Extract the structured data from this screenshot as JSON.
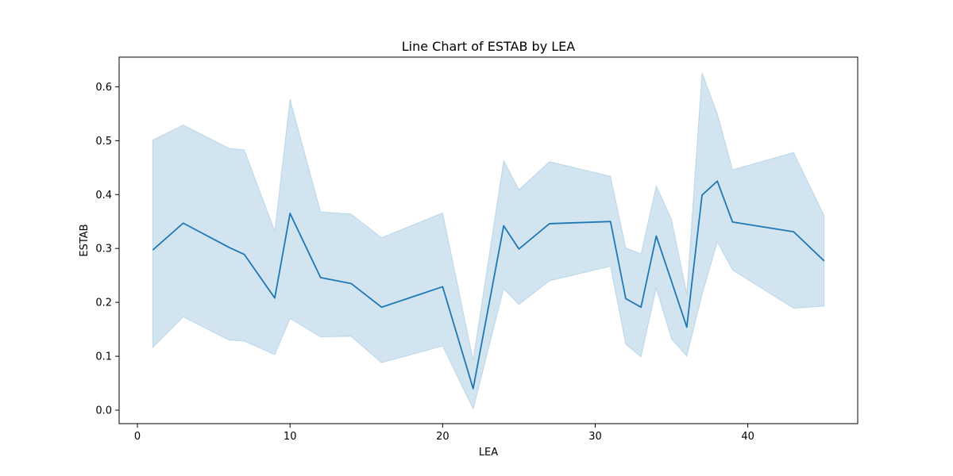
{
  "chart_data": {
    "type": "line",
    "title": "Line Chart of ESTAB by LEA",
    "xlabel": "LEA",
    "ylabel": "ESTAB",
    "xlim": [
      -1.2,
      47.2
    ],
    "ylim": [
      -0.025,
      0.655
    ],
    "xticks": [
      0,
      10,
      20,
      30,
      40
    ],
    "xtick_labels": [
      "0",
      "10",
      "20",
      "30",
      "40"
    ],
    "yticks": [
      0.0,
      0.1,
      0.2,
      0.3,
      0.4,
      0.5,
      0.6
    ],
    "ytick_labels": [
      "0.0",
      "0.1",
      "0.2",
      "0.3",
      "0.4",
      "0.5",
      "0.6"
    ],
    "grid": false,
    "line_color": "#1f77b4",
    "band_color": "#1f77b4",
    "series": [
      {
        "x": [
          1,
          3,
          6,
          7,
          9,
          10,
          12,
          14,
          16,
          20,
          22,
          24,
          25,
          27,
          31,
          32,
          33,
          34,
          35,
          36,
          37,
          38,
          39,
          43,
          45
        ],
        "y": [
          0.297,
          0.347,
          0.302,
          0.289,
          0.208,
          0.365,
          0.246,
          0.235,
          0.191,
          0.229,
          0.04,
          0.342,
          0.299,
          0.346,
          0.35,
          0.207,
          0.191,
          0.323,
          0.239,
          0.154,
          0.399,
          0.425,
          0.349,
          0.331,
          0.277
        ],
        "lower": [
          0.116,
          0.173,
          0.13,
          0.128,
          0.103,
          0.17,
          0.136,
          0.137,
          0.088,
          0.119,
          0.002,
          0.225,
          0.196,
          0.24,
          0.267,
          0.122,
          0.099,
          0.226,
          0.132,
          0.1,
          0.214,
          0.312,
          0.26,
          0.189,
          0.193
        ],
        "upper": [
          0.501,
          0.529,
          0.486,
          0.483,
          0.332,
          0.577,
          0.368,
          0.364,
          0.32,
          0.366,
          0.093,
          0.463,
          0.409,
          0.461,
          0.434,
          0.301,
          0.29,
          0.416,
          0.354,
          0.216,
          0.626,
          0.55,
          0.446,
          0.478,
          0.361
        ]
      }
    ]
  }
}
